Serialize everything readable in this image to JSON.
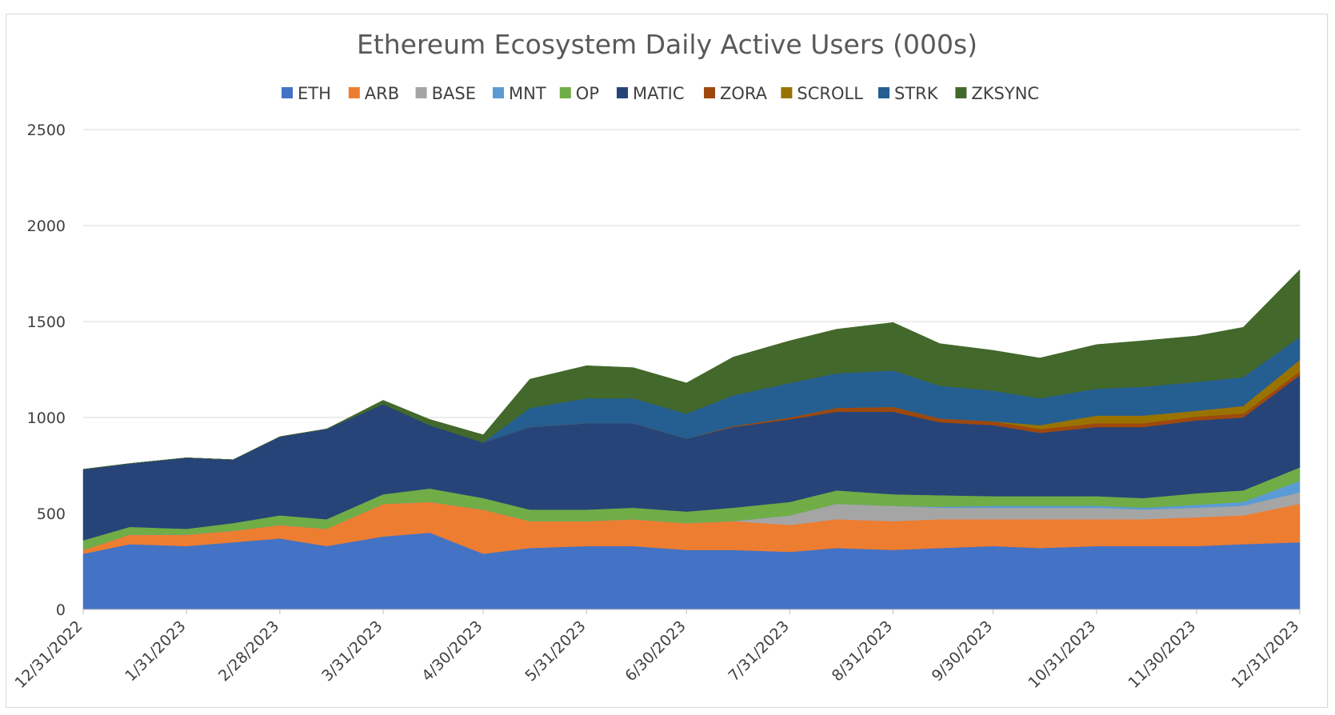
{
  "chart_data": {
    "type": "area",
    "stacked": true,
    "title": "Ethereum Ecosystem Daily Active Users (000s)",
    "xlabel": "",
    "ylabel": "",
    "ylim": [
      0,
      2500
    ],
    "y_ticks": [
      "0",
      "500",
      "1000",
      "1500",
      "2000",
      "2500"
    ],
    "x_tick_labels": [
      "12/31/2022",
      "1/31/2023",
      "2/28/2023",
      "3/31/2023",
      "4/30/2023",
      "5/31/2023",
      "6/30/2023",
      "7/31/2023",
      "8/31/2023",
      "9/30/2023",
      "10/31/2023",
      "11/30/2023",
      "12/31/2023"
    ],
    "grid": "horizontal",
    "legend_position": "top",
    "x": [
      "12/31/2022",
      "1/14/2023",
      "1/31/2023",
      "2/14/2023",
      "2/28/2023",
      "3/14/2023",
      "3/31/2023",
      "4/14/2023",
      "4/30/2023",
      "5/14/2023",
      "5/31/2023",
      "6/14/2023",
      "6/30/2023",
      "7/14/2023",
      "7/31/2023",
      "8/14/2023",
      "8/31/2023",
      "9/14/2023",
      "9/30/2023",
      "10/14/2023",
      "10/31/2023",
      "11/14/2023",
      "11/30/2023",
      "12/14/2023",
      "12/31/2023"
    ],
    "series": [
      {
        "name": "ETH",
        "color": "#4472c4",
        "values": [
          290,
          340,
          330,
          350,
          370,
          330,
          380,
          400,
          290,
          320,
          330,
          330,
          310,
          310,
          300,
          320,
          310,
          320,
          330,
          320,
          330,
          330,
          330,
          340,
          350
        ]
      },
      {
        "name": "ARB",
        "color": "#ed7d31",
        "values": [
          20,
          50,
          60,
          60,
          70,
          90,
          170,
          160,
          230,
          140,
          130,
          140,
          140,
          150,
          140,
          150,
          150,
          150,
          140,
          150,
          140,
          140,
          150,
          150,
          200
        ]
      },
      {
        "name": "BASE",
        "color": "#a5a5a5",
        "values": [
          0,
          0,
          0,
          0,
          0,
          0,
          0,
          0,
          0,
          0,
          0,
          0,
          0,
          0,
          50,
          80,
          80,
          60,
          60,
          60,
          60,
          50,
          50,
          50,
          60
        ]
      },
      {
        "name": "MNT",
        "color": "#5b9bd5",
        "values": [
          0,
          0,
          0,
          0,
          0,
          0,
          0,
          0,
          0,
          0,
          0,
          0,
          0,
          0,
          0,
          0,
          0,
          5,
          10,
          10,
          10,
          10,
          15,
          20,
          60
        ]
      },
      {
        "name": "OP",
        "color": "#70ad47",
        "values": [
          50,
          40,
          30,
          40,
          50,
          50,
          50,
          70,
          60,
          60,
          60,
          60,
          60,
          70,
          70,
          70,
          60,
          60,
          50,
          50,
          50,
          50,
          60,
          60,
          70
        ]
      },
      {
        "name": "MATIC",
        "color": "#264478",
        "values": [
          370,
          330,
          370,
          330,
          410,
          470,
          470,
          330,
          290,
          430,
          450,
          440,
          380,
          420,
          430,
          410,
          430,
          380,
          370,
          330,
          360,
          370,
          380,
          380,
          480
        ]
      },
      {
        "name": "ZORA",
        "color": "#9e480e",
        "values": [
          0,
          0,
          0,
          0,
          0,
          0,
          0,
          0,
          0,
          0,
          0,
          0,
          0,
          5,
          10,
          20,
          25,
          20,
          20,
          20,
          20,
          20,
          20,
          20,
          20
        ]
      },
      {
        "name": "SCROLL",
        "color": "#997300",
        "values": [
          0,
          0,
          0,
          0,
          0,
          0,
          0,
          0,
          0,
          0,
          0,
          0,
          0,
          0,
          0,
          0,
          0,
          0,
          0,
          20,
          40,
          40,
          30,
          40,
          60
        ]
      },
      {
        "name": "STRK",
        "color": "#255e91",
        "values": [
          0,
          0,
          0,
          0,
          0,
          0,
          0,
          0,
          0,
          100,
          130,
          130,
          130,
          160,
          180,
          180,
          190,
          170,
          160,
          140,
          140,
          150,
          150,
          150,
          120
        ]
      },
      {
        "name": "ZKSYNC",
        "color": "#43682b",
        "values": [
          0,
          0,
          0,
          0,
          0,
          0,
          20,
          30,
          40,
          150,
          170,
          160,
          160,
          200,
          220,
          230,
          250,
          220,
          210,
          210,
          230,
          240,
          240,
          260,
          350
        ]
      }
    ]
  }
}
